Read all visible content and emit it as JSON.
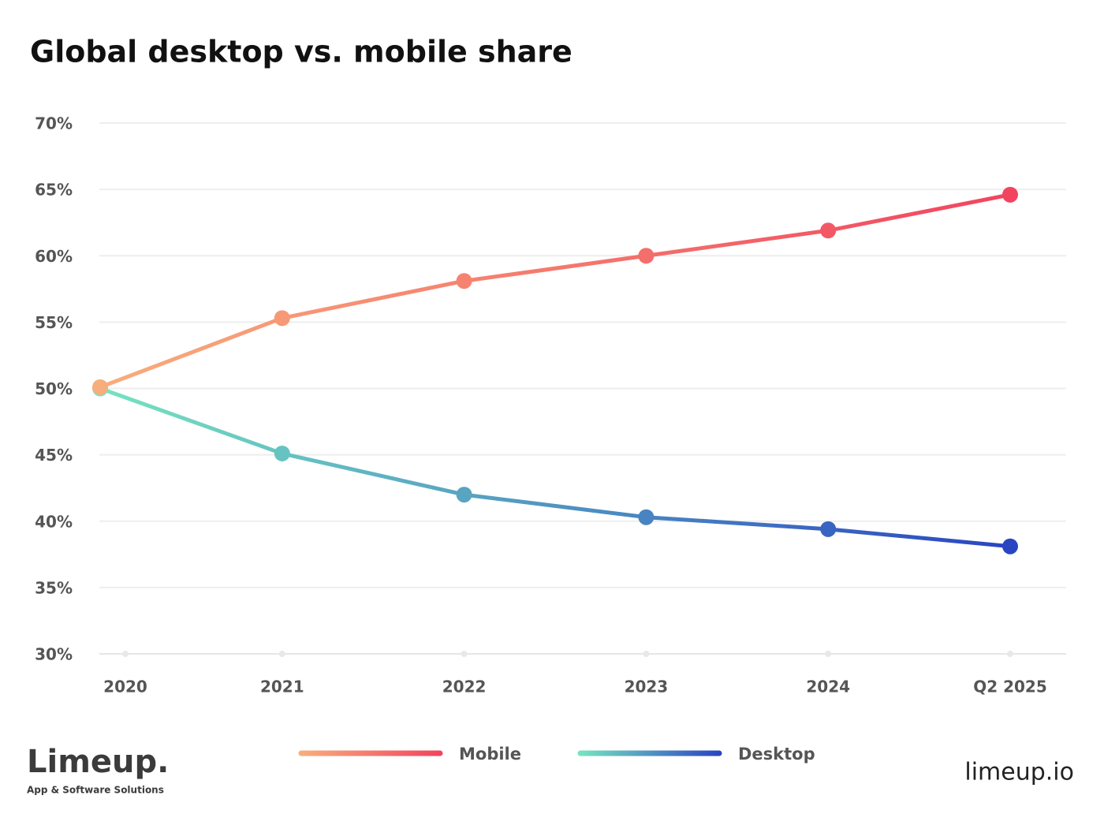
{
  "chart_data": {
    "type": "line",
    "title": "Global desktop vs. mobile share",
    "categories": [
      "2020",
      "2021",
      "2022",
      "2023",
      "2024",
      "Q2 2025"
    ],
    "series": [
      {
        "name": "Mobile",
        "color": [
          "#f8ad7c",
          "#f2445f"
        ],
        "values": [
          50.1,
          55.3,
          58.1,
          60.0,
          61.9,
          64.6
        ]
      },
      {
        "name": "Desktop",
        "color": [
          "#76e3c1",
          "#2a45c2"
        ],
        "values": [
          50.0,
          45.1,
          42.0,
          40.3,
          39.4,
          38.1
        ]
      }
    ],
    "ylim": [
      30,
      70
    ],
    "yticks": [
      {
        "value": 30,
        "label": "30%"
      },
      {
        "value": 35,
        "label": "35%"
      },
      {
        "value": 40,
        "label": "40%"
      },
      {
        "value": 45,
        "label": "45%"
      },
      {
        "value": 50,
        "label": "50%"
      },
      {
        "value": 55,
        "label": "55%"
      },
      {
        "value": 60,
        "label": "60%"
      },
      {
        "value": 65,
        "label": "65%"
      },
      {
        "value": 70,
        "label": "70%"
      }
    ],
    "grid": true
  },
  "branding": {
    "logo": "Limeup.",
    "tagline": "App & Software Solutions",
    "site": "limeup.io"
  }
}
